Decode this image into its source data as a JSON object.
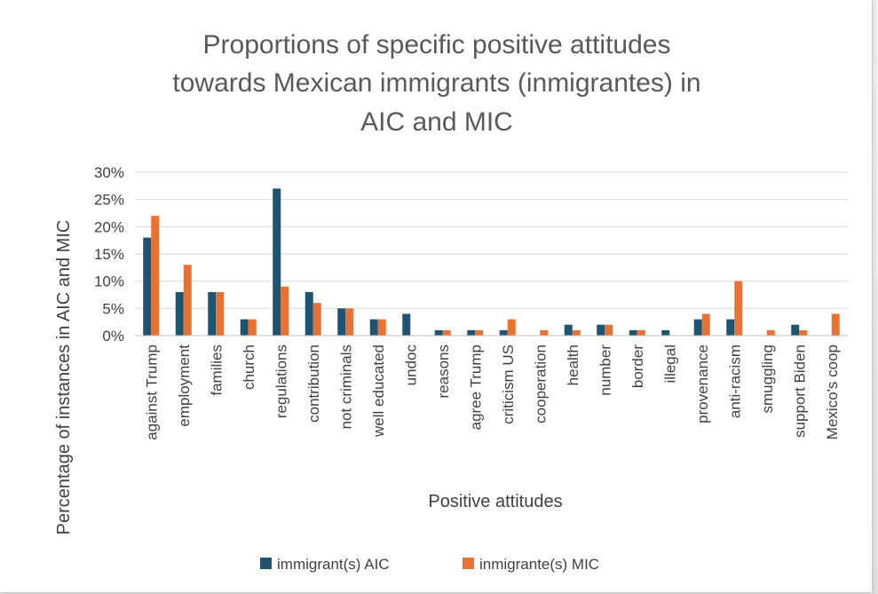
{
  "chart_data": {
    "type": "bar",
    "title_lines": [
      "Proportions of specific positive attitudes",
      "towards Mexican immigrants (inmigrantes) in",
      "AIC and MIC"
    ],
    "xlabel": "Positive attitudes",
    "ylabel": "Percentage of instances in AIC and MIC",
    "ylim": [
      0,
      30
    ],
    "yticks": [
      "0%",
      "5%",
      "10%",
      "15%",
      "20%",
      "25%",
      "30%"
    ],
    "grid": true,
    "legend_position": "bottom",
    "categories": [
      "against Trump",
      "employment",
      "families",
      "church",
      "regulations",
      "contribution",
      "not criminals",
      "well educated",
      "undoc",
      "reasons",
      "agree Trump",
      "criticism US",
      "cooperation",
      "health",
      "number",
      "border",
      "illegal",
      "provenance",
      "anti-racism",
      "smuggling",
      "support Biden",
      "Mexico's coop"
    ],
    "series": [
      {
        "name": "immigrant(s) AIC",
        "color": "#1f5470",
        "values": [
          18,
          8,
          8,
          3,
          27,
          8,
          5,
          3,
          4,
          1,
          1,
          1,
          0,
          2,
          2,
          1,
          1,
          3,
          3,
          0,
          2,
          0
        ]
      },
      {
        "name": "inmigrante(s) MIC",
        "color": "#e97132",
        "values": [
          22,
          13,
          8,
          3,
          9,
          6,
          5,
          3,
          0,
          1,
          1,
          3,
          1,
          1,
          2,
          1,
          0,
          4,
          10,
          1,
          1,
          4
        ]
      }
    ]
  }
}
